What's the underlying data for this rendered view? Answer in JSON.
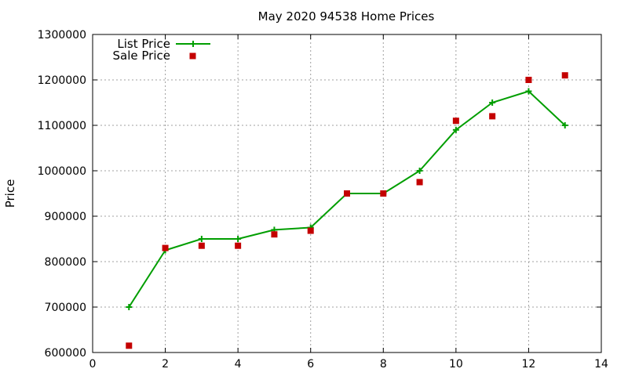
{
  "chart_data": {
    "type": "line",
    "title": "May 2020 94538 Home Prices",
    "xlabel": "",
    "ylabel": "Price",
    "xlim": [
      0,
      14
    ],
    "ylim": [
      600000,
      1300000
    ],
    "x_ticks": [
      0,
      2,
      4,
      6,
      8,
      10,
      12,
      14
    ],
    "y_ticks": [
      600000,
      700000,
      800000,
      900000,
      1000000,
      1100000,
      1200000,
      1300000
    ],
    "grid": true,
    "legend_position": "top-left",
    "series": [
      {
        "name": "List Price",
        "style": "line-with-plus-markers",
        "color": "#009e00",
        "x": [
          1,
          2,
          3,
          4,
          5,
          6,
          7,
          8,
          9,
          10,
          11,
          12,
          13
        ],
        "y": [
          700000,
          825000,
          850000,
          850000,
          870000,
          875000,
          950000,
          950000,
          1000000,
          1090000,
          1150000,
          1175000,
          1100000
        ]
      },
      {
        "name": "Sale Price",
        "style": "square-markers",
        "color": "#c40000",
        "x": [
          1,
          2,
          3,
          4,
          5,
          6,
          7,
          8,
          9,
          10,
          11,
          12,
          13
        ],
        "y": [
          615000,
          830000,
          835000,
          835000,
          860000,
          868000,
          950000,
          950000,
          975000,
          1110000,
          1120000,
          1200000,
          1210000
        ]
      }
    ]
  }
}
